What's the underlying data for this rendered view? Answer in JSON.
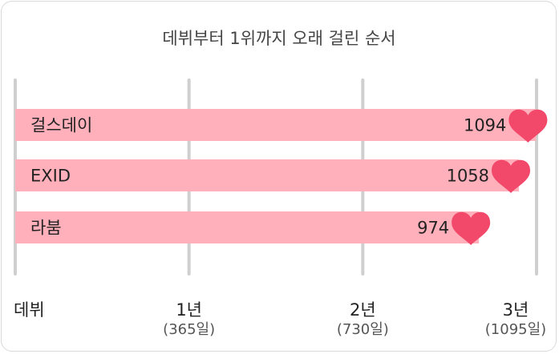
{
  "chart_data": {
    "type": "bar",
    "orientation": "horizontal",
    "title": "데뷔부터 1위까지 오래 걸린 순서",
    "categories": [
      "걸스데이",
      "EXID",
      "라붐"
    ],
    "values": [
      1094,
      1058,
      974
    ],
    "xlim": [
      0,
      1095
    ],
    "grid": true,
    "ticks": [
      {
        "value": 0,
        "label": "데뷔",
        "sublabel": ""
      },
      {
        "value": 365,
        "label": "1년",
        "sublabel": "(365일)"
      },
      {
        "value": 730,
        "label": "2년",
        "sublabel": "(730일)"
      },
      {
        "value": 1095,
        "label": "3년",
        "sublabel": "(1095일)"
      }
    ],
    "marker_icon": "heart-icon",
    "colors": {
      "bar": "#ffb0bb",
      "heart": "#f2486a",
      "grid": "#cfcfcf",
      "text": "#222222",
      "title": "#444444",
      "sublabel": "#555555"
    }
  }
}
